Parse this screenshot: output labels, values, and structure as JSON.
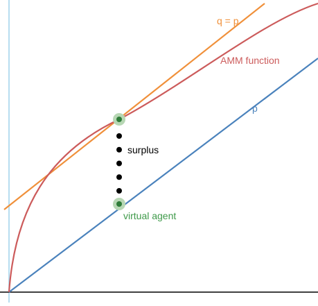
{
  "diagram": {
    "labels": {
      "tangent": "q = p",
      "amm": "AMM function",
      "p_line": "p",
      "surplus": "surplus",
      "virtual_agent": "virtual agent"
    },
    "colors": {
      "tangent": "#f0903a",
      "amm": "#cc5b5b",
      "p_line": "#4a82bc",
      "virtual_agent": "#3f9a4a",
      "y_axis": "#9fd2ec",
      "x_axis": "#000000",
      "point_halo": "#b7d7b4",
      "point_core": "#2f7c39",
      "dots": "#000000"
    },
    "surplus_dot_count": 5
  }
}
